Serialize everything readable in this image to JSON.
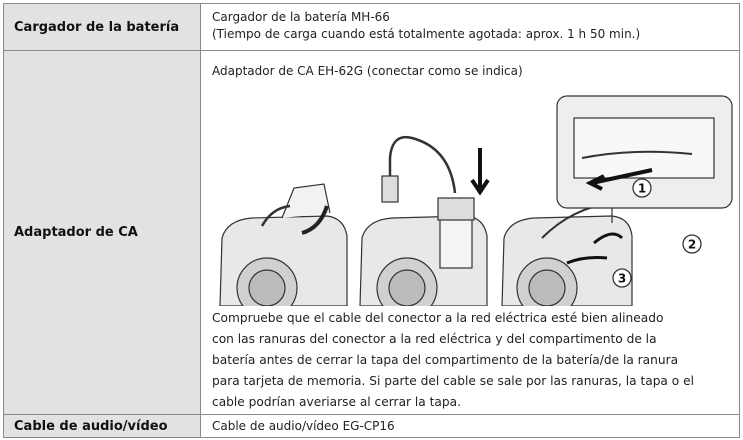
{
  "table": {
    "rows": [
      {
        "label": "Cargador de la batería",
        "content": [
          "Cargador de la batería MH-66",
          "(Tiempo de carga cuando está totalmente agotada: aprox. 1 h 50 min.)"
        ]
      },
      {
        "label": "Adaptador de CA",
        "content": [
          "Adaptador de CA EH-62G (conectar como se indica)"
        ],
        "callouts": [
          "1",
          "2",
          "3"
        ],
        "note": [
          "Compruebe que el cable del conector a la red eléctrica esté bien alineado",
          "con las ranuras del conector a la red eléctrica y del compartimento de la",
          "batería antes de cerrar la tapa del compartimento de la batería/de la ranura",
          "para tarjeta de memoria. Si parte del cable se sale por las ranuras, la tapa o el",
          "cable podrían averiarse al cerrar la tapa."
        ]
      },
      {
        "label": "Cable de audio/vídeo",
        "content": [
          "Cable de audio/vídeo EG-CP16"
        ]
      }
    ]
  }
}
